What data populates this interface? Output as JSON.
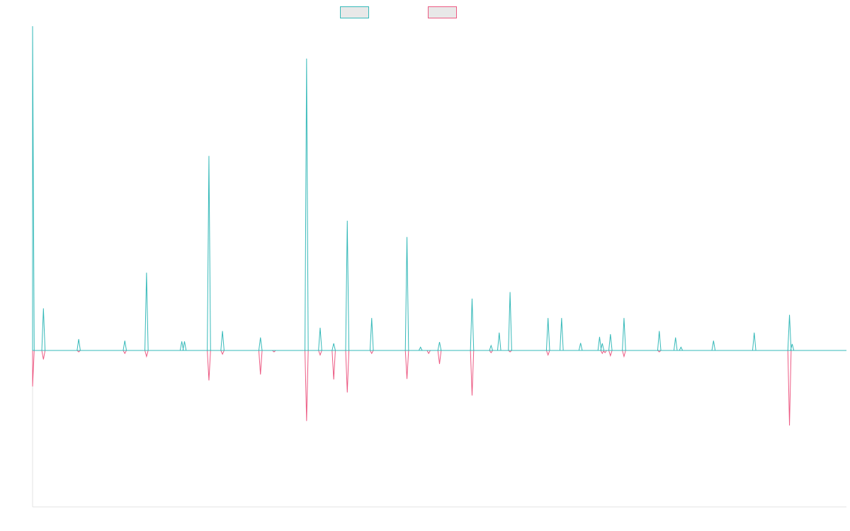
{
  "chart_data": {
    "type": "line",
    "title": "",
    "xlabel": "",
    "ylabel": "",
    "ylim": [
      -1.0,
      1.0
    ],
    "xlim": [
      0,
      300
    ],
    "grid": false,
    "legend": {
      "position": "top-center"
    },
    "series": [
      {
        "color": "#36b9b9",
        "fill": "#e8e8e8",
        "points": [
          [
            0,
            1.0
          ],
          [
            4,
            0.13
          ],
          [
            17,
            0.035
          ],
          [
            34,
            0.03
          ],
          [
            42,
            0.24
          ],
          [
            55,
            0.028
          ],
          [
            56,
            0.028
          ],
          [
            65,
            0.6
          ],
          [
            70,
            0.06
          ],
          [
            84,
            0.04
          ],
          [
            101,
            0.9
          ],
          [
            106,
            0.07
          ],
          [
            111,
            0.022
          ],
          [
            116,
            0.4
          ],
          [
            125,
            0.1
          ],
          [
            138,
            0.35
          ],
          [
            143,
            0.01
          ],
          [
            150,
            0.026
          ],
          [
            162,
            0.16
          ],
          [
            169,
            0.015
          ],
          [
            172,
            0.055
          ],
          [
            176,
            0.18
          ],
          [
            190,
            0.1
          ],
          [
            195,
            0.1
          ],
          [
            202,
            0.023
          ],
          [
            209,
            0.042
          ],
          [
            210,
            0.022
          ],
          [
            213,
            0.05
          ],
          [
            218,
            0.1
          ],
          [
            231,
            0.06
          ],
          [
            237,
            0.04
          ],
          [
            239,
            0.01
          ],
          [
            251,
            0.03
          ],
          [
            266,
            0.055
          ],
          [
            279,
            0.11
          ],
          [
            280,
            0.02
          ]
        ]
      },
      {
        "color": "#ec5a83",
        "fill": "#e8e8e8",
        "points": [
          [
            0,
            -0.24
          ],
          [
            4,
            -0.06
          ],
          [
            17,
            -0.01
          ],
          [
            34,
            -0.02
          ],
          [
            42,
            -0.04
          ],
          [
            65,
            -0.2
          ],
          [
            70,
            -0.025
          ],
          [
            84,
            -0.16
          ],
          [
            89,
            -0.01
          ],
          [
            101,
            -0.47
          ],
          [
            106,
            -0.03
          ],
          [
            111,
            -0.193
          ],
          [
            116,
            -0.28
          ],
          [
            125,
            -0.02
          ],
          [
            138,
            -0.19
          ],
          [
            146,
            -0.02
          ],
          [
            150,
            -0.09
          ],
          [
            162,
            -0.3
          ],
          [
            169,
            -0.015
          ],
          [
            176,
            -0.01
          ],
          [
            190,
            -0.03
          ],
          [
            210,
            -0.02
          ],
          [
            211,
            -0.015
          ],
          [
            213,
            -0.035
          ],
          [
            218,
            -0.04
          ],
          [
            231,
            -0.01
          ],
          [
            279,
            -0.5
          ]
        ]
      }
    ]
  }
}
